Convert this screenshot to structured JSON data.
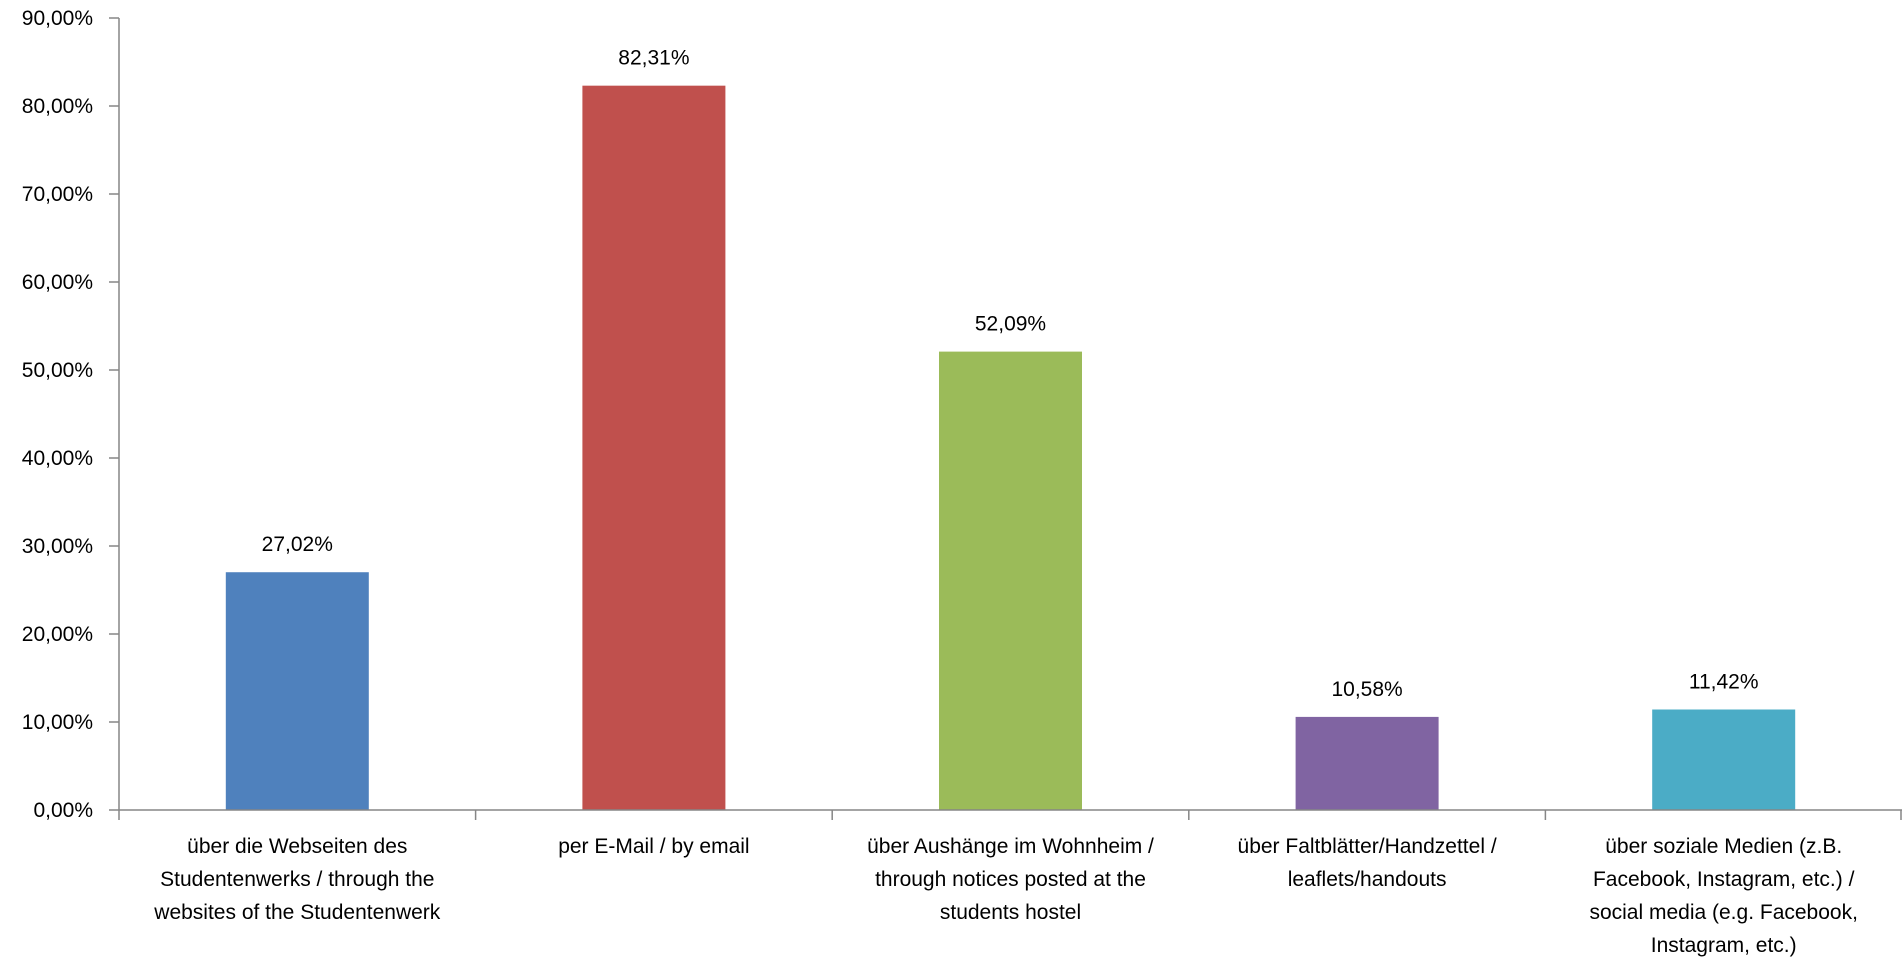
{
  "chart_data": {
    "type": "bar",
    "title": "",
    "xlabel": "",
    "ylabel": "",
    "ylim": [
      0,
      90
    ],
    "y_ticks": [
      0,
      10,
      20,
      30,
      40,
      50,
      60,
      70,
      80,
      90
    ],
    "y_tick_labels": [
      "0,00%",
      "10,00%",
      "20,00%",
      "30,00%",
      "40,00%",
      "50,00%",
      "60,00%",
      "70,00%",
      "80,00%",
      "90,00%"
    ],
    "grid": false,
    "legend": "none",
    "categories": [
      [
        "über die Webseiten des",
        "Studentenwerks / through the",
        "websites of the Studentenwerk"
      ],
      [
        "per E-Mail / by email"
      ],
      [
        "über Aushänge im Wohnheim /",
        "through notices posted at the",
        "students hostel"
      ],
      [
        "über Faltblätter/Handzettel /",
        "leaflets/handouts"
      ],
      [
        "über soziale Medien (z.B.",
        "Facebook, Instagram, etc.) /",
        "social media (e.g. Facebook,",
        "Instagram, etc.)"
      ]
    ],
    "values": [
      27.02,
      82.31,
      52.09,
      10.58,
      11.42
    ],
    "value_labels": [
      "27,02%",
      "82,31%",
      "52,09%",
      "10,58%",
      "11,42%"
    ],
    "colors": [
      "#4f81bd",
      "#c0504d",
      "#9bbb59",
      "#8064a2",
      "#4bacc6"
    ],
    "axis_color": "#868686"
  }
}
